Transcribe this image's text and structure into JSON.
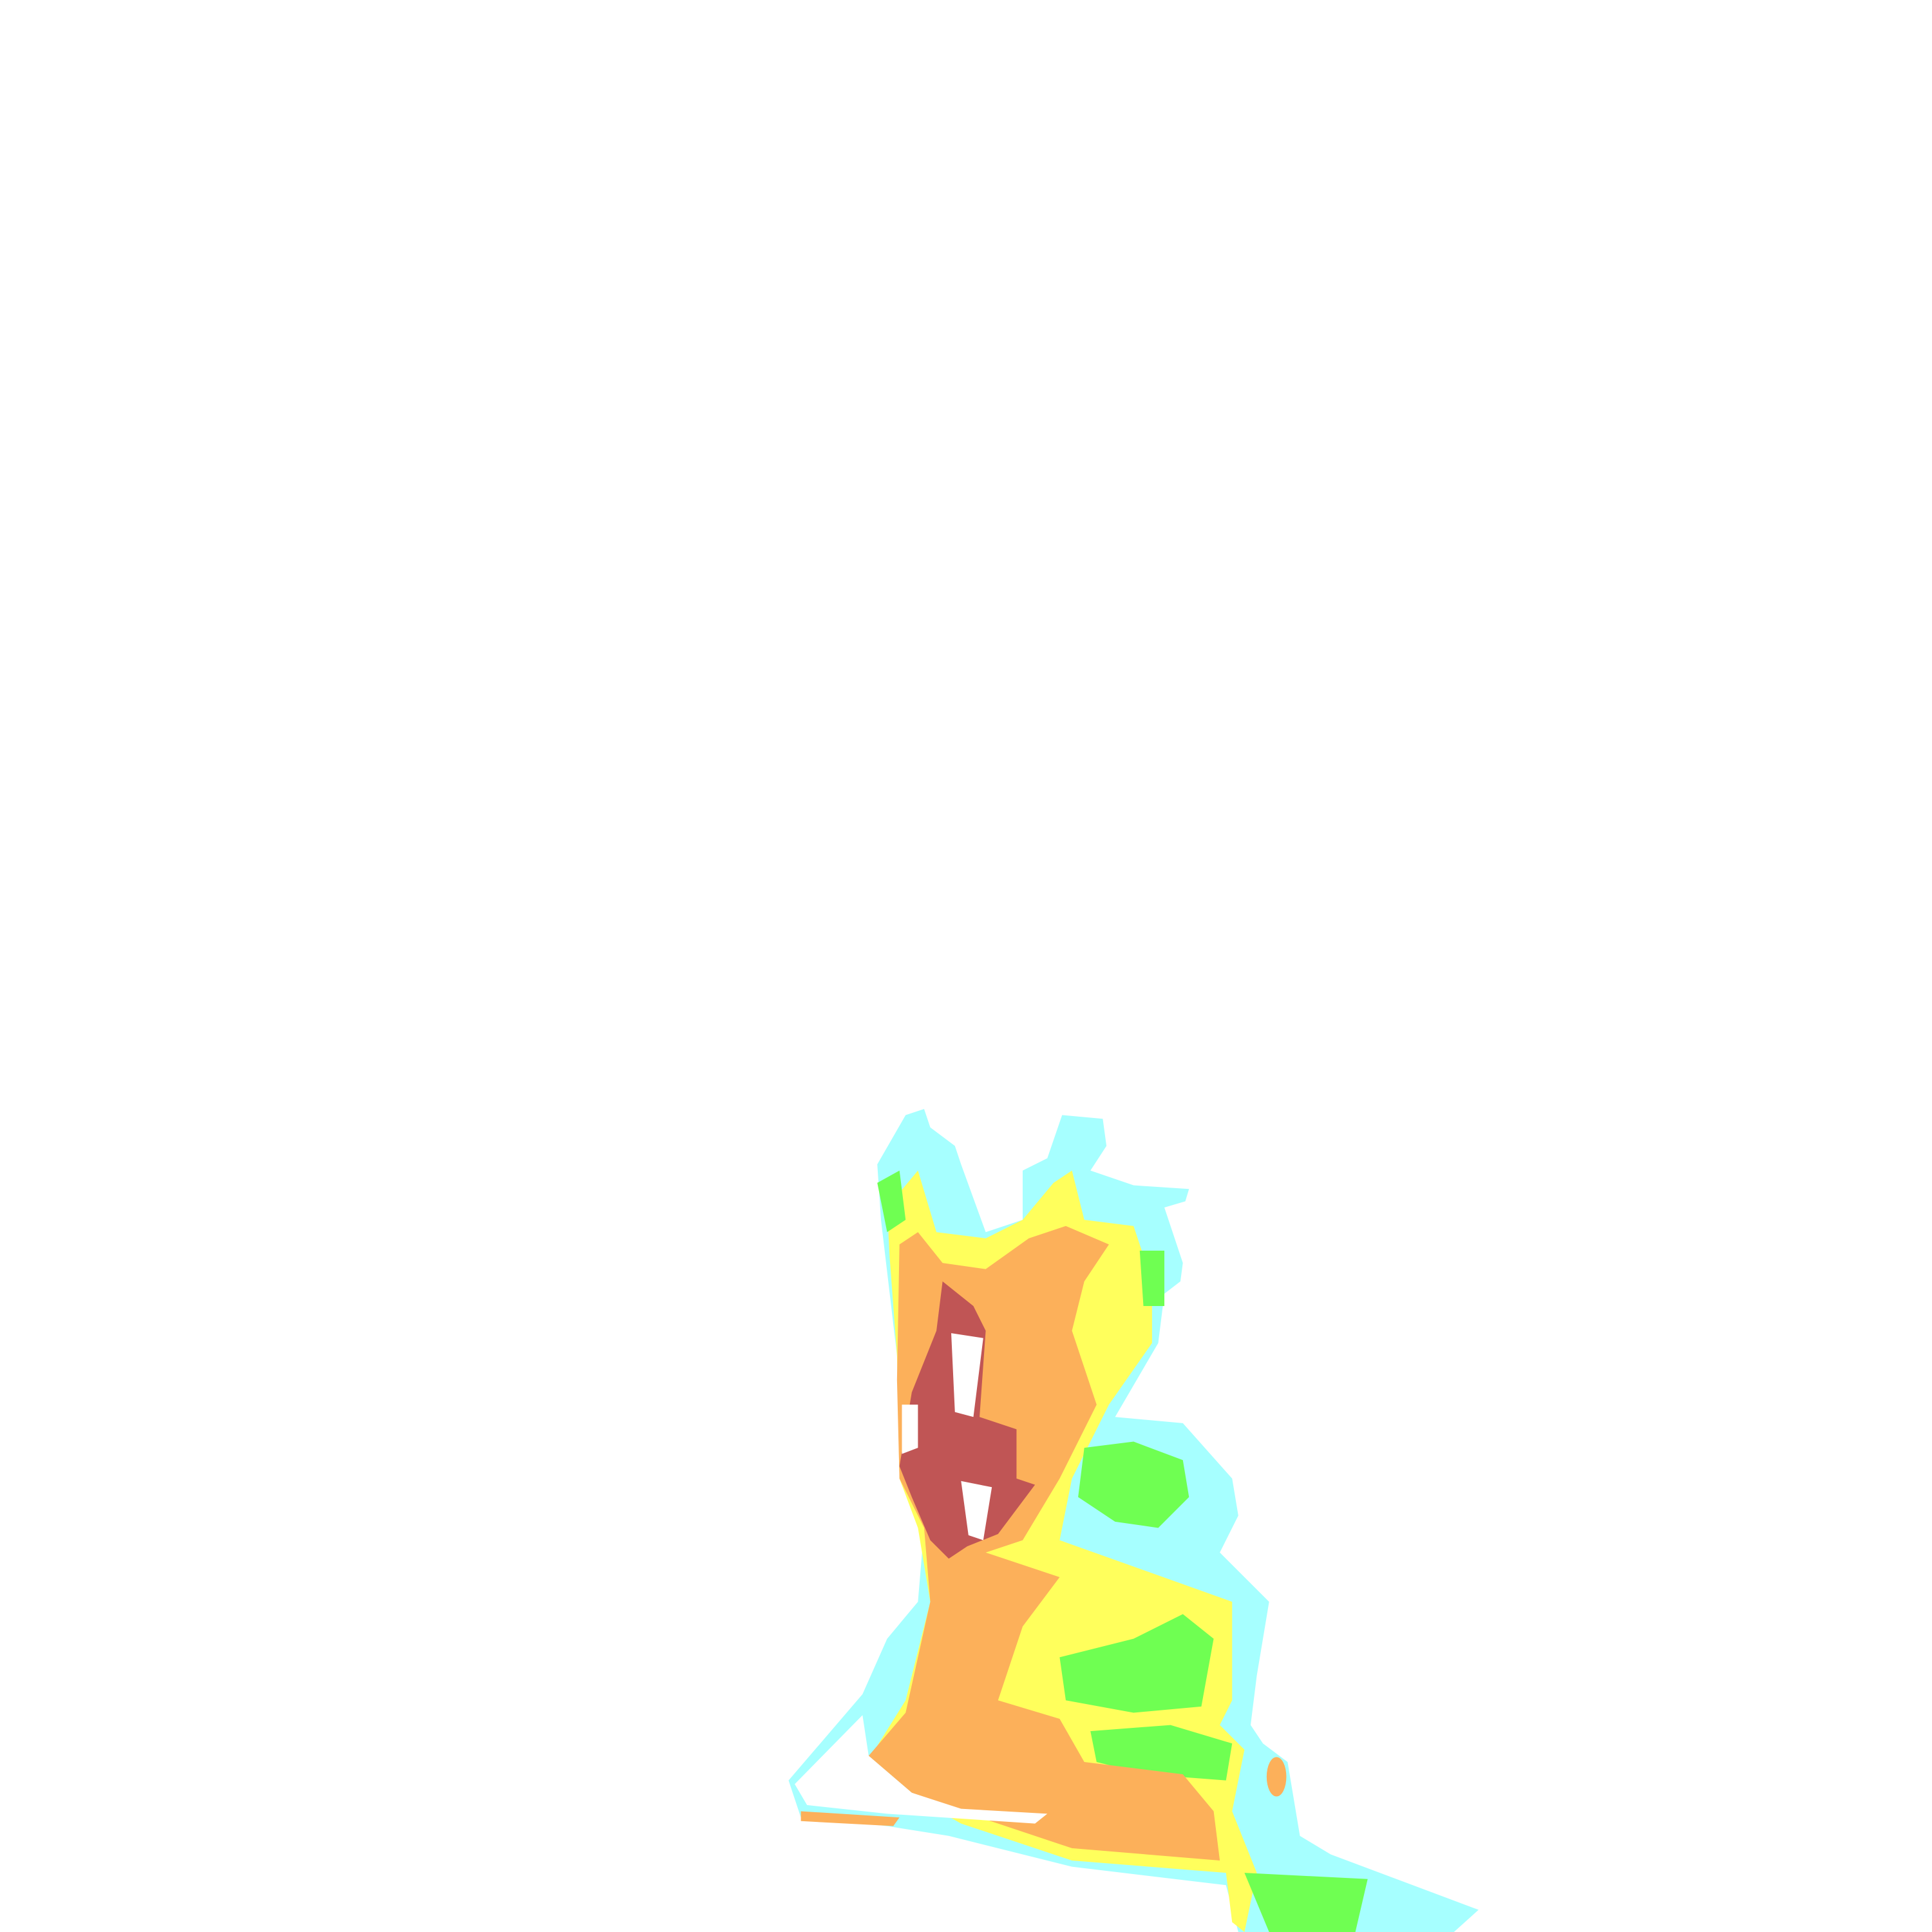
{
  "map": {
    "background": "#ffffff",
    "class_colors": {
      "very_low": "#a6ffff",
      "low": "#6fff52",
      "medium": "#ffff5c",
      "high": "#fcb05a",
      "very_high": "#c05555",
      "none": "#ffffff"
    }
  }
}
